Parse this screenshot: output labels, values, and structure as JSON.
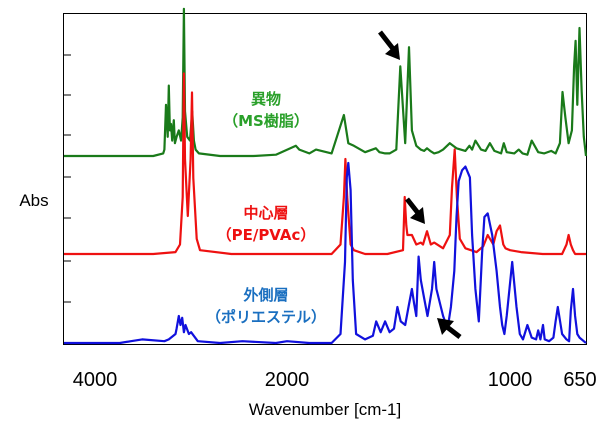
{
  "chart_data": {
    "type": "line",
    "title": "",
    "xlabel": "Wavenumber [cm-1]",
    "ylabel": "Abs",
    "xlim": [
      4000,
      650
    ],
    "x_scale": "reversed",
    "x_ticks": [
      4000,
      2000,
      1000,
      650
    ],
    "grid": false,
    "legend": "none",
    "series": [
      {
        "name": "異物（MS樹脂）",
        "label_lines": [
          "異物",
          "（MS樹脂）"
        ],
        "color": "#1a7a1a",
        "label_color": "#2aa02a",
        "x": [
          4000,
          3200,
          3110,
          3100,
          3085,
          3070,
          3060,
          3050,
          3040,
          3030,
          3015,
          3005,
          2990,
          2970,
          2950,
          2935,
          2925,
          2915,
          2895,
          2870,
          2850,
          2835,
          2820,
          2790,
          2600,
          2300,
          2100,
          1960,
          1945,
          1900,
          1870,
          1800,
          1745,
          1725,
          1700,
          1650,
          1602,
          1585,
          1560,
          1540,
          1510,
          1492,
          1470,
          1453,
          1440,
          1420,
          1400,
          1385,
          1372,
          1358,
          1340,
          1320,
          1300,
          1270,
          1240,
          1200,
          1182,
          1170,
          1155,
          1130,
          1110,
          1090,
          1070,
          1040,
          1028,
          1015,
          980,
          960,
          942,
          920,
          900,
          870,
          842,
          810,
          790,
          770,
          758,
          745,
          730,
          715,
          705,
          698,
          690,
          680,
          670,
          660,
          650
        ],
        "values": [
          0.0,
          0.0,
          0.02,
          0.05,
          0.4,
          0.15,
          0.55,
          0.2,
          0.25,
          0.12,
          0.28,
          0.1,
          0.15,
          0.2,
          0.12,
          0.3,
          1.15,
          0.35,
          0.15,
          0.12,
          0.35,
          0.12,
          0.05,
          0.02,
          0.0,
          0.0,
          0.01,
          0.08,
          0.05,
          0.02,
          0.05,
          0.02,
          0.32,
          0.1,
          0.08,
          0.03,
          0.06,
          0.03,
          0.02,
          0.02,
          0.05,
          0.7,
          0.1,
          0.85,
          0.2,
          0.08,
          0.05,
          0.04,
          0.06,
          0.04,
          0.02,
          0.03,
          0.05,
          0.1,
          0.06,
          0.04,
          0.08,
          0.05,
          0.12,
          0.05,
          0.04,
          0.1,
          0.04,
          0.02,
          0.1,
          0.03,
          0.02,
          0.05,
          0.02,
          0.01,
          0.12,
          0.03,
          0.02,
          0.04,
          0.02,
          0.1,
          0.5,
          0.3,
          0.1,
          0.2,
          0.7,
          0.9,
          0.4,
          1.0,
          0.5,
          0.15,
          0.0
        ]
      },
      {
        "name": "中心層（PE/PVAc）",
        "label_lines": [
          "中心層",
          "（PE/PVAc）"
        ],
        "color": "#ee1111",
        "label_color": "#ee1111",
        "x": [
          4000,
          3200,
          3000,
          2960,
          2935,
          2925,
          2915,
          2890,
          2865,
          2852,
          2840,
          2810,
          2780,
          2500,
          2000,
          1800,
          1760,
          1745,
          1738,
          1730,
          1715,
          1700,
          1650,
          1550,
          1480,
          1472,
          1465,
          1460,
          1440,
          1420,
          1400,
          1390,
          1372,
          1355,
          1340,
          1300,
          1270,
          1260,
          1248,
          1238,
          1225,
          1200,
          1150,
          1120,
          1100,
          1075,
          1060,
          1045,
          1030,
          1020,
          1000,
          950,
          850,
          760,
          740,
          730,
          720,
          710,
          700,
          680,
          650
        ],
        "values": [
          0.0,
          0.0,
          0.01,
          0.05,
          0.3,
          0.95,
          0.5,
          0.2,
          0.5,
          0.85,
          0.4,
          0.08,
          0.02,
          0.0,
          0.0,
          0.0,
          0.05,
          0.3,
          0.5,
          0.3,
          0.05,
          0.02,
          0.0,
          0.0,
          0.02,
          0.3,
          0.15,
          0.1,
          0.1,
          0.05,
          0.06,
          0.05,
          0.12,
          0.05,
          0.06,
          0.03,
          0.1,
          0.35,
          0.55,
          0.3,
          0.08,
          0.03,
          0.01,
          0.04,
          0.1,
          0.05,
          0.12,
          0.15,
          0.05,
          0.03,
          0.02,
          0.01,
          0.0,
          0.0,
          0.05,
          0.1,
          0.05,
          0.02,
          0.0,
          0.0,
          0.0
        ]
      },
      {
        "name": "外側層（ポリエステル）",
        "label_lines": [
          "外側層",
          "（ポリエステル）"
        ],
        "color": "#1111dd",
        "label_color": "#1a6fc0",
        "x": [
          4000,
          3500,
          3400,
          3300,
          3100,
          3060,
          3000,
          2990,
          2970,
          2955,
          2940,
          2925,
          2910,
          2880,
          2860,
          2800,
          2600,
          2400,
          2100,
          2000,
          1900,
          1800,
          1760,
          1740,
          1732,
          1725,
          1715,
          1705,
          1690,
          1650,
          1615,
          1600,
          1580,
          1560,
          1540,
          1520,
          1505,
          1490,
          1470,
          1455,
          1440,
          1430,
          1420,
          1410,
          1400,
          1385,
          1370,
          1350,
          1340,
          1330,
          1300,
          1280,
          1265,
          1250,
          1240,
          1230,
          1215,
          1200,
          1180,
          1170,
          1155,
          1140,
          1125,
          1115,
          1100,
          1080,
          1060,
          1045,
          1035,
          1025,
          1015,
          990,
          970,
          955,
          940,
          920,
          900,
          880,
          870,
          860,
          848,
          840,
          820,
          800,
          790,
          780,
          760,
          740,
          728,
          720,
          710,
          700,
          690,
          680,
          660,
          650
        ],
        "values": [
          0.0,
          0.0,
          0.01,
          0.02,
          0.01,
          0.02,
          0.05,
          0.08,
          0.15,
          0.1,
          0.14,
          0.06,
          0.1,
          0.05,
          0.06,
          0.01,
          0.0,
          0.01,
          0.0,
          0.01,
          0.0,
          0.0,
          0.05,
          0.45,
          0.92,
          1.0,
          0.85,
          0.35,
          0.05,
          0.02,
          0.04,
          0.12,
          0.06,
          0.12,
          0.06,
          0.08,
          0.2,
          0.12,
          0.1,
          0.2,
          0.3,
          0.22,
          0.15,
          0.48,
          0.35,
          0.25,
          0.15,
          0.3,
          0.45,
          0.3,
          0.15,
          0.08,
          0.2,
          0.4,
          0.7,
          0.9,
          0.96,
          0.98,
          0.92,
          0.6,
          0.3,
          0.12,
          0.5,
          0.7,
          0.72,
          0.6,
          0.4,
          0.2,
          0.1,
          0.05,
          0.15,
          0.45,
          0.2,
          0.05,
          0.02,
          0.1,
          0.03,
          0.02,
          0.07,
          0.02,
          0.1,
          0.02,
          0.01,
          0.03,
          0.12,
          0.2,
          0.05,
          0.02,
          0.01,
          0.18,
          0.3,
          0.15,
          0.05,
          0.03,
          0.01,
          0.0
        ]
      }
    ]
  }
}
